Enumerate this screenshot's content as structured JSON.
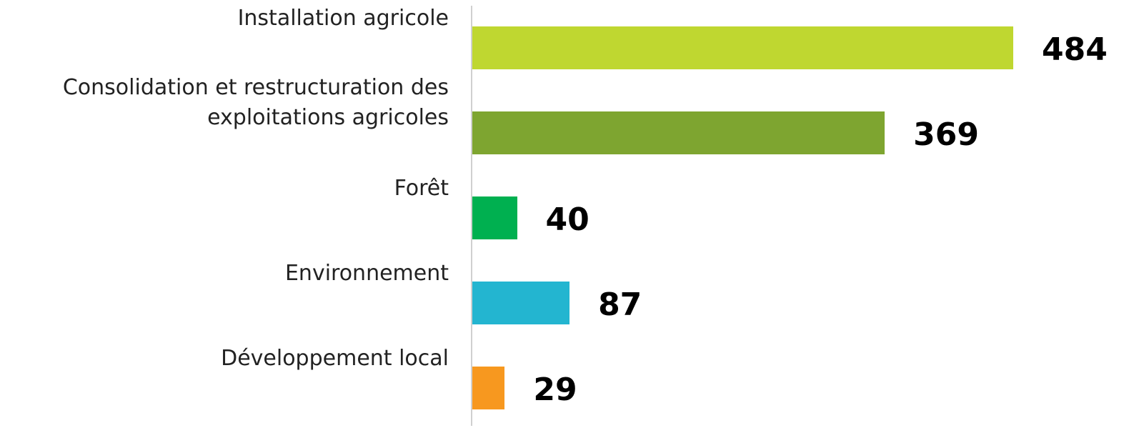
{
  "chart_data": {
    "type": "bar",
    "orientation": "horizontal",
    "categories": [
      "Installation agricole",
      "Consolidation et restructuration des exploitations agricoles",
      "Forêt",
      "Environnement",
      "Développement local"
    ],
    "values": [
      484,
      369,
      40,
      87,
      29
    ],
    "colors": [
      "#bfd730",
      "#7ea530",
      "#00b050",
      "#23b5d0",
      "#f7981f"
    ]
  }
}
